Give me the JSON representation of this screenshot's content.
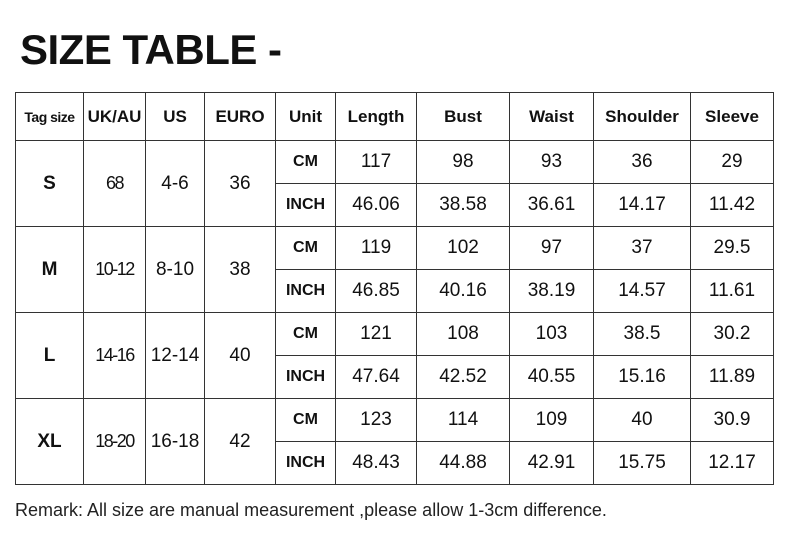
{
  "title": "SIZE TABLE -",
  "headers": [
    "Tag size",
    "UK/AU",
    "US",
    "EURO",
    "Unit",
    "Length",
    "Bust",
    "Waist",
    "Shoulder",
    "Sleeve"
  ],
  "rows": [
    {
      "tag": "S",
      "ukau": "68",
      "us": "4-6",
      "euro": "36",
      "cm": {
        "unit": "CM",
        "values": [
          "117",
          "98",
          "93",
          "36",
          "29"
        ]
      },
      "inch": {
        "unit": "INCH",
        "values": [
          "46.06",
          "38.58",
          "36.61",
          "14.17",
          "11.42"
        ]
      }
    },
    {
      "tag": "M",
      "ukau": "10-12",
      "us": "8-10",
      "euro": "38",
      "cm": {
        "unit": "CM",
        "values": [
          "119",
          "102",
          "97",
          "37",
          "29.5"
        ]
      },
      "inch": {
        "unit": "INCH",
        "values": [
          "46.85",
          "40.16",
          "38.19",
          "14.57",
          "11.61"
        ]
      }
    },
    {
      "tag": "L",
      "ukau": "14-16",
      "us": "12-14",
      "euro": "40",
      "cm": {
        "unit": "CM",
        "values": [
          "121",
          "108",
          "103",
          "38.5",
          "30.2"
        ]
      },
      "inch": {
        "unit": "INCH",
        "values": [
          "47.64",
          "42.52",
          "40.55",
          "15.16",
          "11.89"
        ]
      }
    },
    {
      "tag": "XL",
      "ukau": "18-20",
      "us": "16-18",
      "euro": "42",
      "cm": {
        "unit": "CM",
        "values": [
          "123",
          "114",
          "109",
          "40",
          "30.9"
        ]
      },
      "inch": {
        "unit": "INCH",
        "values": [
          "48.43",
          "44.88",
          "42.91",
          "15.75",
          "12.17"
        ]
      }
    }
  ],
  "remark": "Remark: All size are manual measurement ,please allow 1-3cm difference."
}
